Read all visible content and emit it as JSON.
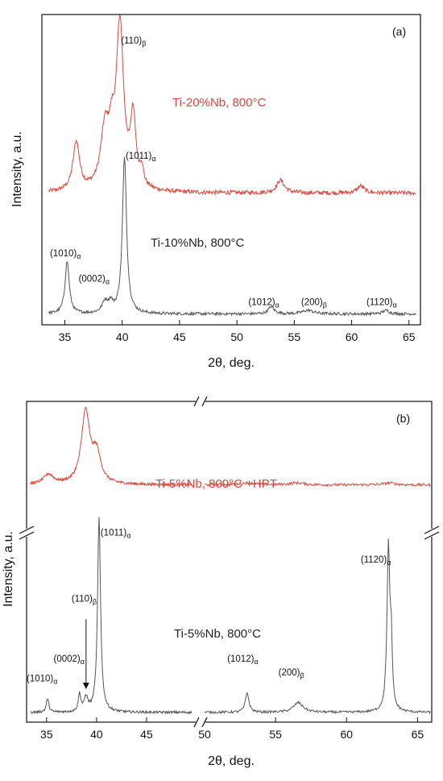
{
  "chart_data": [
    {
      "type": "line",
      "panel_label": "(a)",
      "xlabel": "2θ, deg.",
      "ylabel": "Intensity, a.u.",
      "xlim": [
        33,
        66
      ],
      "xticks": [
        35,
        40,
        45,
        50,
        55,
        60,
        65
      ],
      "colors": {
        "red": "#e0443a",
        "gray": "#555555"
      },
      "series": [
        {
          "name": "Ti-20%Nb, 800°C",
          "color": "#e0443a",
          "baseline": 0.73,
          "peaks": [
            [
              36.0,
              0.27,
              0.35
            ],
            [
              38.5,
              0.32,
              0.45
            ],
            [
              39.1,
              0.2,
              0.3
            ],
            [
              39.8,
              0.9,
              0.38
            ],
            [
              40.95,
              0.38,
              0.3
            ],
            [
              41.7,
              0.09,
              0.18
            ],
            [
              53.8,
              0.07,
              0.4
            ],
            [
              60.8,
              0.04,
              0.35
            ]
          ],
          "noise": 0.012
        },
        {
          "name": "Ti-10%Nb, 800°C",
          "color": "#555555",
          "baseline": 0.06,
          "peaks": [
            [
              35.2,
              0.29,
              0.22
            ],
            [
              38.5,
              0.06,
              0.3
            ],
            [
              39.0,
              0.05,
              0.25
            ],
            [
              40.2,
              0.86,
              0.22
            ],
            [
              53.0,
              0.04,
              0.3
            ],
            [
              56.2,
              0.02,
              0.6
            ],
            [
              63.0,
              0.02,
              0.35
            ]
          ],
          "noise": 0.008
        }
      ],
      "annotations": [
        {
          "text": "(110)",
          "sub": "β",
          "x": 39.9,
          "y": 1.56
        },
        {
          "text": "(1011)",
          "sub": "α",
          "x": 40.3,
          "y": 0.92
        },
        {
          "text": "(1010)",
          "sub": "α",
          "x": 33.7,
          "y": 0.38
        },
        {
          "text": "(0002)",
          "sub": "α",
          "x": 36.2,
          "y": 0.24
        },
        {
          "text": "(1012)",
          "sub": "α",
          "x": 51.0,
          "y": 0.11
        },
        {
          "text": "(200)",
          "sub": "β",
          "x": 55.6,
          "y": 0.11
        },
        {
          "text": "(1120)",
          "sub": "α",
          "x": 61.3,
          "y": 0.11
        }
      ]
    },
    {
      "type": "line",
      "panel_label": "(b)",
      "xlabel": "2θ, deg.",
      "ylabel": "Intensity, a.u.",
      "broken_x_axis": true,
      "x_segments": [
        [
          33,
          50
        ],
        [
          50,
          66
        ]
      ],
      "xticks_left": [
        35,
        40,
        45
      ],
      "xticks_right": [
        50,
        55,
        60,
        65
      ],
      "colors": {
        "red": "#e0443a",
        "gray": "#555555"
      },
      "series": [
        {
          "name": "Ti-5%Nb, 800°C +HPT",
          "color": "#e0443a",
          "baseline": 1.22,
          "peaks": [
            [
              35.2,
              0.05,
              0.6
            ],
            [
              38.9,
              0.37,
              0.5
            ],
            [
              40.0,
              0.15,
              0.5
            ],
            [
              53.0,
              0.01,
              0.6
            ],
            [
              56.5,
              0.01,
              0.6
            ],
            [
              63.0,
              0.01,
              0.5
            ]
          ],
          "noise": 0.007
        },
        {
          "name": "Ti-5%Nb, 800°C",
          "color": "#555555",
          "baseline": 0.05,
          "peaks": [
            [
              35.1,
              0.07,
              0.15
            ],
            [
              38.3,
              0.09,
              0.15
            ],
            [
              38.95,
              0.07,
              0.22
            ],
            [
              40.25,
              1.0,
              0.18
            ],
            [
              53.0,
              0.1,
              0.15
            ],
            [
              56.6,
              0.05,
              0.4
            ],
            [
              62.95,
              0.85,
              0.12
            ],
            [
              63.15,
              0.3,
              0.08
            ]
          ],
          "noise": 0.006
        }
      ],
      "annotations": [
        {
          "text": "(1011)",
          "sub": "α",
          "x": 40.4,
          "y": 0.96
        },
        {
          "text": "(110)",
          "sub": "β",
          "x": 37.5,
          "y": 0.62
        },
        {
          "text": "(1120)",
          "sub": "α",
          "x": 61.0,
          "y": 0.82
        },
        {
          "text": "(1010)",
          "sub": "α",
          "x": 33.0,
          "y": 0.21
        },
        {
          "text": "(0002)",
          "sub": "α",
          "x": 35.7,
          "y": 0.31
        },
        {
          "text": "(1012)",
          "sub": "α",
          "x": 51.6,
          "y": 0.31
        },
        {
          "text": "(200)",
          "sub": "β",
          "x": 55.2,
          "y": 0.24
        }
      ],
      "arrow": {
        "x": 38.95,
        "y_from": 0.53,
        "y_to": 0.17
      }
    }
  ]
}
